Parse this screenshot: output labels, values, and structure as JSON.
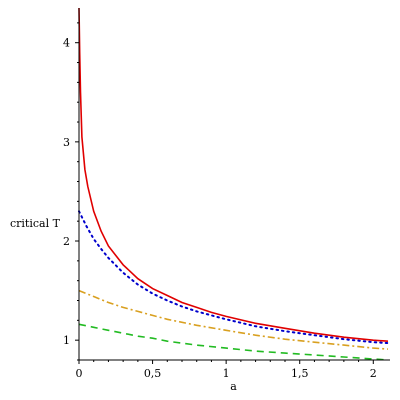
{
  "chart_data": {
    "type": "line",
    "title": "",
    "xlabel": "a",
    "ylabel": "critical T",
    "xlim": [
      0,
      2.1
    ],
    "ylim": [
      0.8,
      4.35
    ],
    "grid": false,
    "x_ticks": [
      {
        "value": 0,
        "label": "0"
      },
      {
        "value": 0.5,
        "label": "0,5"
      },
      {
        "value": 1,
        "label": "1"
      },
      {
        "value": 1.5,
        "label": "1,5"
      },
      {
        "value": 2,
        "label": "2"
      }
    ],
    "y_ticks": [
      {
        "value": 1,
        "label": "1"
      },
      {
        "value": 2,
        "label": "2"
      },
      {
        "value": 3,
        "label": "3"
      },
      {
        "value": 4,
        "label": "4"
      }
    ],
    "series": [
      {
        "style": "solid",
        "color": "#e00000",
        "x": [
          0,
          0.005,
          0.01,
          0.02,
          0.04,
          0.06,
          0.1,
          0.15,
          0.2,
          0.3,
          0.4,
          0.5,
          0.6,
          0.7,
          0.8,
          0.9,
          1.0,
          1.2,
          1.4,
          1.6,
          1.8,
          2.0,
          2.1
        ],
        "y": [
          4.35,
          3.9,
          3.5,
          3.05,
          2.72,
          2.55,
          2.3,
          2.1,
          1.95,
          1.76,
          1.62,
          1.52,
          1.45,
          1.38,
          1.33,
          1.28,
          1.24,
          1.17,
          1.12,
          1.07,
          1.03,
          1.0,
          0.99
        ]
      },
      {
        "style": "dotted",
        "color": "#0000cc",
        "x": [
          0,
          0.05,
          0.1,
          0.15,
          0.2,
          0.3,
          0.4,
          0.5,
          0.6,
          0.7,
          0.8,
          1.0,
          1.2,
          1.4,
          1.6,
          1.8,
          2.0,
          2.1
        ],
        "y": [
          2.3,
          2.15,
          2.02,
          1.92,
          1.83,
          1.68,
          1.56,
          1.47,
          1.4,
          1.34,
          1.29,
          1.21,
          1.14,
          1.09,
          1.05,
          1.01,
          0.98,
          0.97
        ]
      },
      {
        "style": "dash-dot",
        "color": "#d9a020",
        "x": [
          0,
          0.1,
          0.2,
          0.3,
          0.4,
          0.5,
          0.6,
          0.8,
          1.0,
          1.2,
          1.4,
          1.6,
          1.8,
          2.0,
          2.1
        ],
        "y": [
          1.5,
          1.44,
          1.38,
          1.33,
          1.29,
          1.25,
          1.21,
          1.15,
          1.1,
          1.05,
          1.01,
          0.98,
          0.95,
          0.92,
          0.91
        ]
      },
      {
        "style": "dashed",
        "color": "#22bb22",
        "x": [
          0,
          0.1,
          0.2,
          0.3,
          0.4,
          0.5,
          0.6,
          0.8,
          1.0,
          1.2,
          1.4,
          1.6,
          1.8,
          2.0,
          2.1
        ],
        "y": [
          1.16,
          1.13,
          1.1,
          1.07,
          1.04,
          1.02,
          0.99,
          0.95,
          0.92,
          0.89,
          0.87,
          0.85,
          0.83,
          0.81,
          0.8
        ]
      }
    ]
  }
}
